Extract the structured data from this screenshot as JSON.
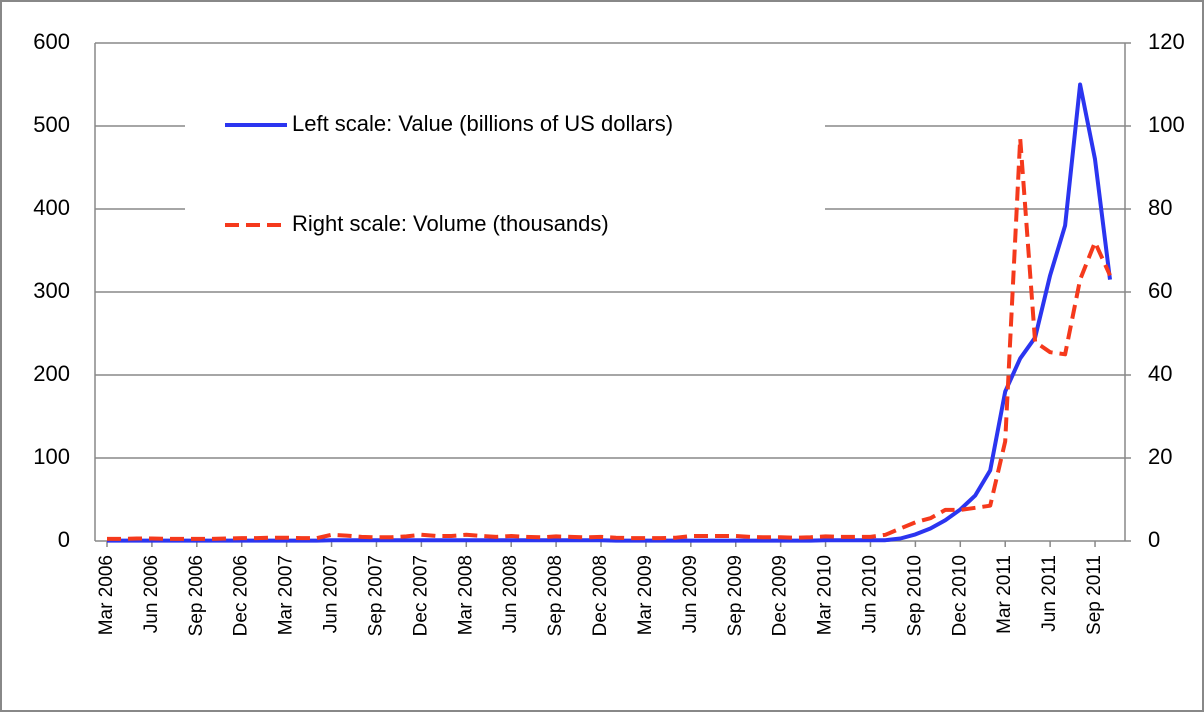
{
  "chart_data": {
    "type": "line",
    "categories": [
      "Mar 2006",
      null,
      null,
      "Jun 2006",
      null,
      null,
      "Sep 2006",
      null,
      null,
      "Dec 2006",
      null,
      null,
      "Mar 2007",
      null,
      null,
      "Jun 2007",
      null,
      null,
      "Sep 2007",
      null,
      null,
      "Dec 2007",
      null,
      null,
      "Mar 2008",
      null,
      null,
      "Jun 2008",
      null,
      null,
      "Sep 2008",
      null,
      null,
      "Dec 2008",
      null,
      null,
      "Mar 2009",
      null,
      null,
      "Jun 2009",
      null,
      null,
      "Sep 2009",
      null,
      null,
      "Dec 2009",
      null,
      null,
      "Mar 2010",
      null,
      null,
      "Jun 2010",
      null,
      null,
      "Sep 2010",
      null,
      null,
      "Dec 2010",
      null,
      null,
      "Mar 2011",
      null,
      null,
      "Jun 2011",
      null,
      null,
      "Sep 2011",
      null
    ],
    "series": [
      {
        "name": "Left scale: Value (billions of US dollars)",
        "color": "#2b35f0",
        "dash": false,
        "values": [
          0.5,
          0.5,
          0.5,
          0.5,
          0.5,
          0.5,
          0.5,
          0.5,
          0.5,
          0.5,
          0.5,
          0.5,
          0.5,
          0.5,
          0.5,
          1,
          1,
          1,
          1,
          1,
          1,
          1,
          1,
          1,
          1,
          1,
          1,
          1,
          1,
          1,
          1,
          1,
          1,
          1,
          0.5,
          0.5,
          0.5,
          0.5,
          0.5,
          0.5,
          0.5,
          0.5,
          0.5,
          0.5,
          0.5,
          0.5,
          0.5,
          0.5,
          1,
          1,
          1,
          1,
          1,
          3,
          8,
          15,
          25,
          38,
          55,
          85,
          180,
          220,
          245,
          320,
          380,
          550,
          460,
          315
        ]
      },
      {
        "name": "Right scale: Volume (thousands)",
        "color": "#f5391c",
        "dash": true,
        "axis": "y2",
        "values": [
          0.5,
          0.5,
          0.6,
          0.6,
          0.5,
          0.5,
          0.5,
          0.5,
          0.6,
          0.7,
          0.7,
          0.8,
          0.8,
          0.7,
          0.7,
          1.5,
          1.3,
          1,
          0.9,
          0.9,
          1.1,
          1.5,
          1.2,
          1.2,
          1.5,
          1.2,
          1,
          1.2,
          1,
          0.9,
          1.1,
          1,
          0.9,
          1,
          0.8,
          0.7,
          0.7,
          0.7,
          0.8,
          1.2,
          1.2,
          1.2,
          1.2,
          1,
          0.9,
          0.9,
          0.8,
          0.9,
          1.1,
          1,
          1,
          1,
          1.5,
          3,
          4.5,
          5.5,
          7.5,
          7.5,
          8,
          8.5,
          24,
          97,
          48,
          45.5,
          45,
          63,
          72,
          64
        ]
      }
    ],
    "ylim": [
      0,
      600
    ],
    "yticks": [
      0,
      100,
      200,
      300,
      400,
      500,
      600
    ],
    "y2lim": [
      0,
      120
    ],
    "y2ticks": [
      0,
      20,
      40,
      60,
      80,
      100,
      120
    ],
    "grid": true
  }
}
